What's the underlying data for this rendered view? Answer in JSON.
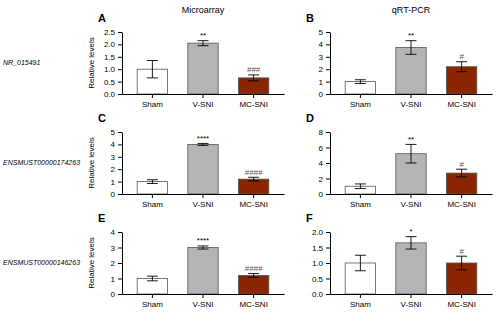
{
  "chart_data": [
    {
      "type": "bar",
      "title": "A",
      "subtitle": "Microarray",
      "ylabel": "Relative levels",
      "categories": [
        "Sham",
        "V-SNI",
        "MC-SNI"
      ],
      "values": [
        1.0,
        2.05,
        0.65
      ],
      "errors": [
        0.35,
        0.1,
        0.12
      ],
      "colors": [
        "white",
        "#b5b5b5",
        "#8B2500"
      ],
      "ylim": [
        0,
        2.5
      ],
      "yticks": [
        {
          "value": 0,
          "label": "0.0"
        },
        0.5,
        {
          "value": 1,
          "label": "1.0"
        },
        1.5,
        {
          "value": 2,
          "label": "2.0"
        },
        2.5
      ],
      "annotations": [
        {
          "text": "NR_015491"
        },
        {
          "text": "**",
          "category": "V-SNI"
        },
        {
          "text": "###",
          "category": "MC-SNI"
        }
      ]
    },
    {
      "type": "bar",
      "title": "B",
      "subtitle": "qRT-PCR",
      "categories": [
        "Sham",
        "V-SNI",
        "MC-SNI"
      ],
      "values": [
        1.0,
        3.75,
        2.2
      ],
      "errors": [
        0.15,
        0.55,
        0.4
      ],
      "colors": [
        "white",
        "#b5b5b5",
        "#8B2500"
      ],
      "ylim": [
        0,
        5
      ],
      "yticks": [
        0,
        1,
        2,
        3,
        4,
        5
      ],
      "annotations": [
        {
          "text": "**",
          "category": "V-SNI"
        },
        {
          "text": "#",
          "category": "MC-SNI"
        }
      ]
    },
    {
      "type": "bar",
      "title": "C",
      "ylabel": "Relative levels",
      "categories": [
        "Sham",
        "V-SNI",
        "MC-SNI"
      ],
      "values": [
        1.0,
        4.0,
        1.2
      ],
      "errors": [
        0.15,
        0.08,
        0.15
      ],
      "colors": [
        "white",
        "#b5b5b5",
        "#8B2500"
      ],
      "ylim": [
        0,
        5
      ],
      "yticks": [
        0,
        1,
        2,
        3,
        4,
        5
      ],
      "annotations": [
        {
          "text": "ENSMUST00000174263"
        },
        {
          "text": "****",
          "category": "V-SNI"
        },
        {
          "text": "####",
          "category": "MC-SNI"
        }
      ]
    },
    {
      "type": "bar",
      "title": "D",
      "categories": [
        "Sham",
        "V-SNI",
        "MC-SNI"
      ],
      "values": [
        1.0,
        5.2,
        2.7
      ],
      "errors": [
        0.3,
        1.2,
        0.5
      ],
      "colors": [
        "white",
        "#b5b5b5",
        "#8B2500"
      ],
      "ylim": [
        0,
        8
      ],
      "yticks": [
        0,
        2,
        4,
        6,
        8
      ],
      "annotations": [
        {
          "text": "**",
          "category": "V-SNI"
        },
        {
          "text": "#",
          "category": "MC-SNI"
        }
      ]
    },
    {
      "type": "bar",
      "title": "E",
      "ylabel": "Relative levels",
      "categories": [
        "Sham",
        "V-SNI",
        "MC-SNI"
      ],
      "values": [
        1.0,
        3.0,
        1.2
      ],
      "errors": [
        0.15,
        0.1,
        0.12
      ],
      "colors": [
        "white",
        "#b5b5b5",
        "#8B2500"
      ],
      "ylim": [
        0,
        4
      ],
      "yticks": [
        0,
        1,
        2,
        3,
        4
      ],
      "annotations": [
        {
          "text": "ENSMUST00000146263"
        },
        {
          "text": "****",
          "category": "V-SNI"
        },
        {
          "text": "####",
          "category": "MC-SNI"
        }
      ]
    },
    {
      "type": "bar",
      "title": "F",
      "categories": [
        "Sham",
        "V-SNI",
        "MC-SNI"
      ],
      "values": [
        1.0,
        1.65,
        1.0
      ],
      "errors": [
        0.25,
        0.2,
        0.22
      ],
      "colors": [
        "white",
        "#b5b5b5",
        "#8B2500"
      ],
      "ylim": [
        0,
        2
      ],
      "yticks": [
        {
          "value": 0,
          "label": "0.0"
        },
        0.5,
        {
          "value": 1,
          "label": "1.0"
        },
        1.5,
        {
          "value": 2,
          "label": "2.0"
        }
      ],
      "annotations": [
        {
          "text": "*",
          "category": "V-SNI"
        },
        {
          "text": "#",
          "category": "MC-SNI"
        }
      ]
    }
  ]
}
